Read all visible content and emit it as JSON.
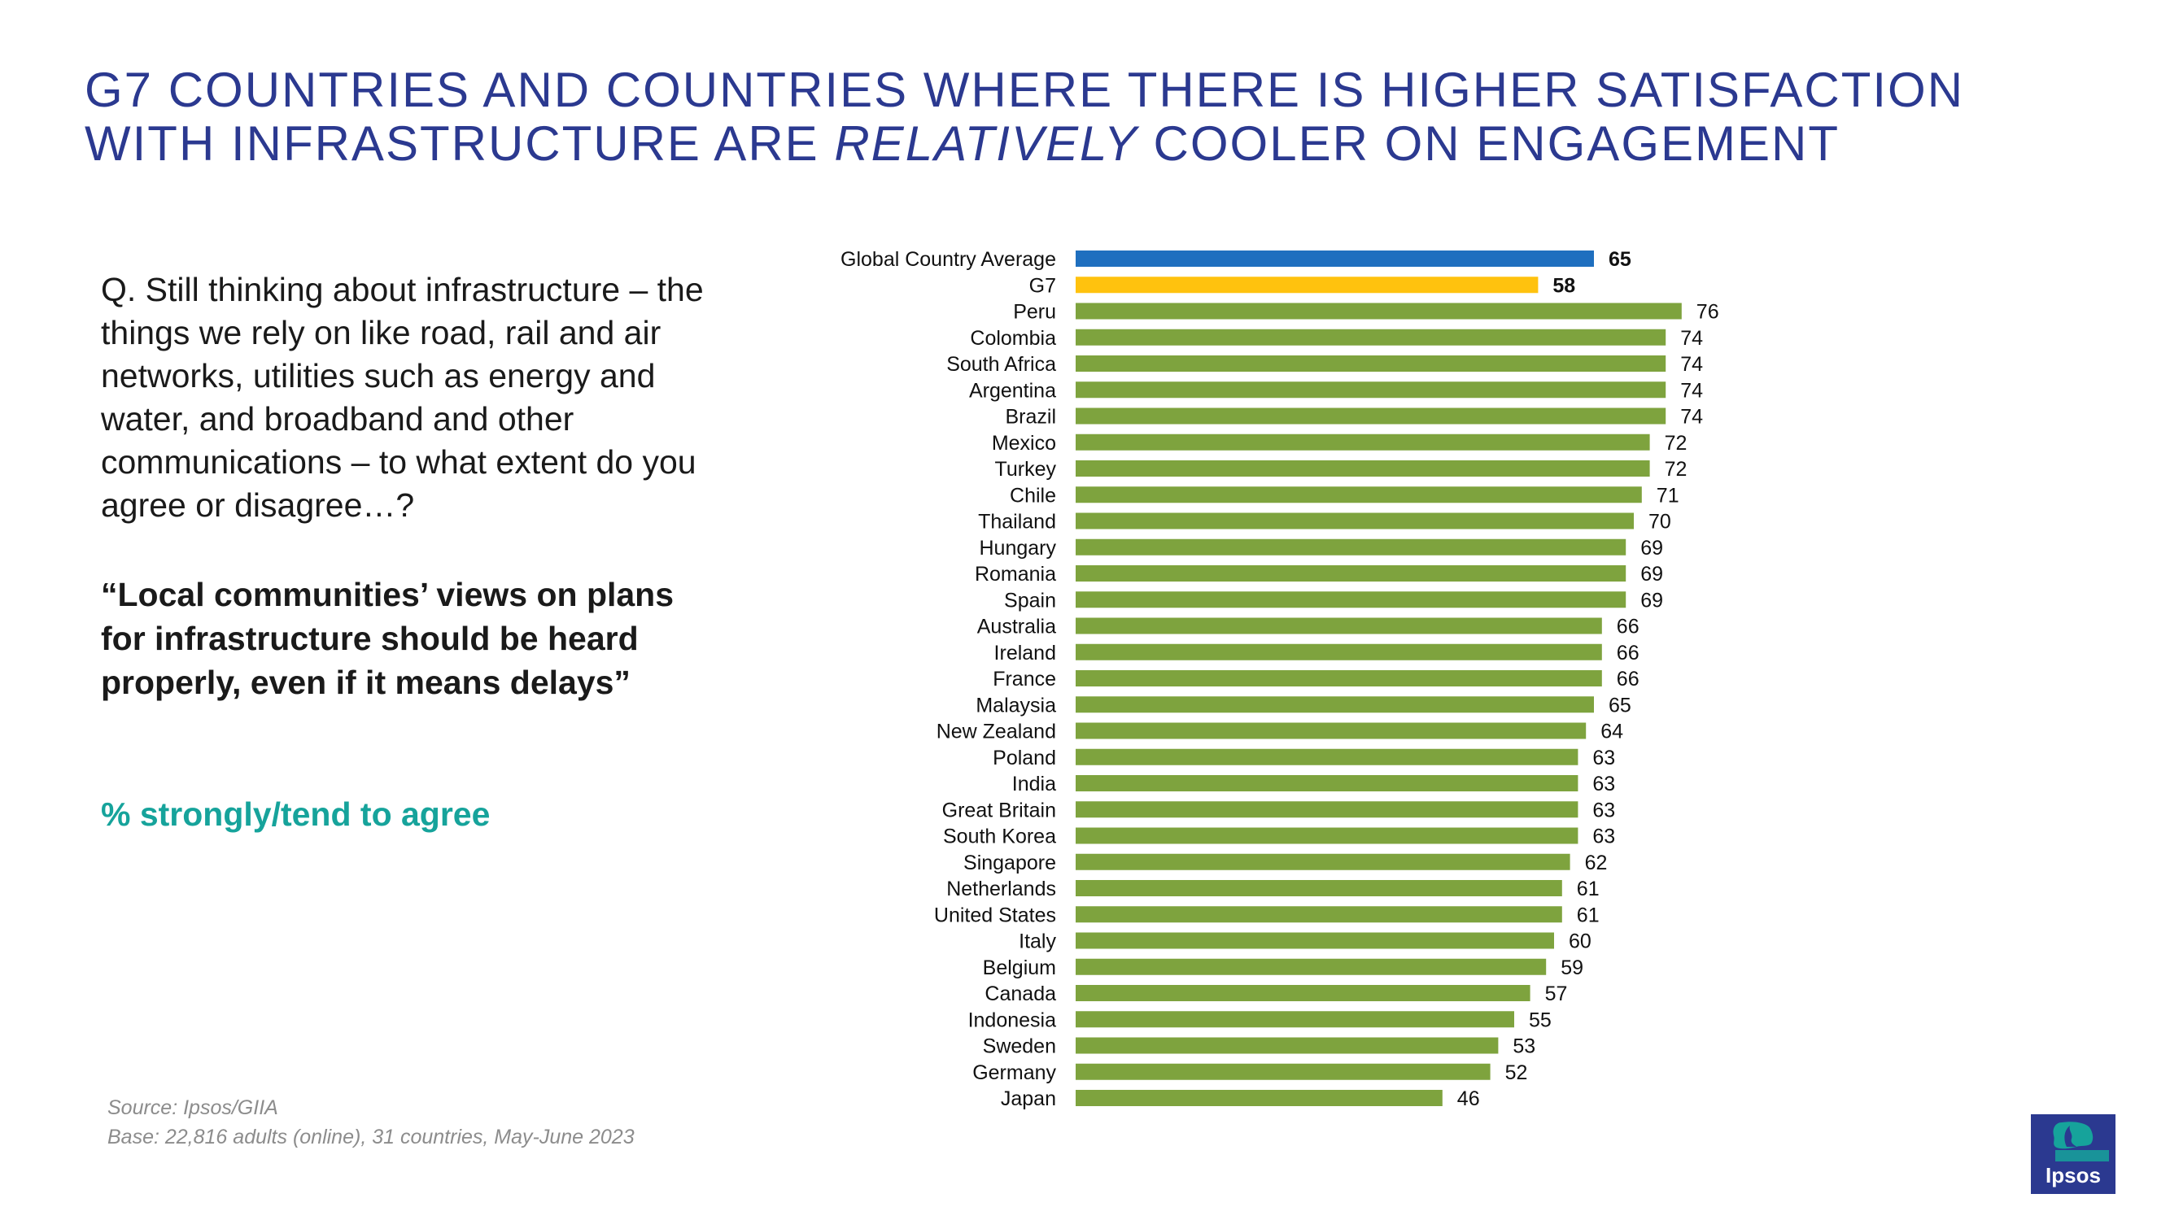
{
  "slide": {
    "title_line1": "G7 COUNTRIES AND COUNTRIES WHERE THERE IS HIGHER SATISFACTION",
    "title_line2_before": "WITH INFRASTRUCTURE ARE ",
    "title_line2_italic": "RELATIVELY",
    "title_line2_after": " COOLER ON ENGAGEMENT",
    "question": "Q. Still thinking about infrastructure – the things we rely on like road, rail and air networks, utilities such as energy and water, and broadband and other communications – to what extent do you agree or disagree…?",
    "statement": "“Local communities’ views on plans for infrastructure should be heard properly, even if it means delays”",
    "measure": "% strongly/tend to agree",
    "source": "Source: Ipsos/GIIA",
    "base": "Base: 22,816 adults (online), 31 countries, May-June 2023",
    "logo_text": "Ipsos"
  },
  "colors": {
    "title": "#2b3990",
    "average_bar": "#1f6fbf",
    "g7_bar": "#ffc20e",
    "country_bar": "#7ea33e",
    "measure_text": "#16a39b",
    "logo_bg": "#2b3990",
    "logo_accent": "#16a39b"
  },
  "chart_data": {
    "type": "bar",
    "orientation": "horizontal",
    "categories": [
      "Global Country Average",
      "G7",
      "Peru",
      "Colombia",
      "South Africa",
      "Argentina",
      "Brazil",
      "Mexico",
      "Turkey",
      "Chile",
      "Thailand",
      "Hungary",
      "Romania",
      "Spain",
      "Australia",
      "Ireland",
      "France",
      "Malaysia",
      "New Zealand",
      "Poland",
      "India",
      "Great Britain",
      "South Korea",
      "Singapore",
      "Netherlands",
      "United States",
      "Italy",
      "Belgium",
      "Canada",
      "Indonesia",
      "Sweden",
      "Germany",
      "Japan"
    ],
    "values": [
      65,
      58,
      76,
      74,
      74,
      74,
      74,
      72,
      72,
      71,
      70,
      69,
      69,
      69,
      66,
      66,
      66,
      65,
      64,
      63,
      63,
      63,
      63,
      62,
      61,
      61,
      60,
      59,
      57,
      55,
      53,
      52,
      46
    ],
    "highlight": {
      "Global Country Average": "average",
      "G7": "g7"
    },
    "xlim": [
      0,
      100
    ],
    "grid": false,
    "legend": "none"
  }
}
